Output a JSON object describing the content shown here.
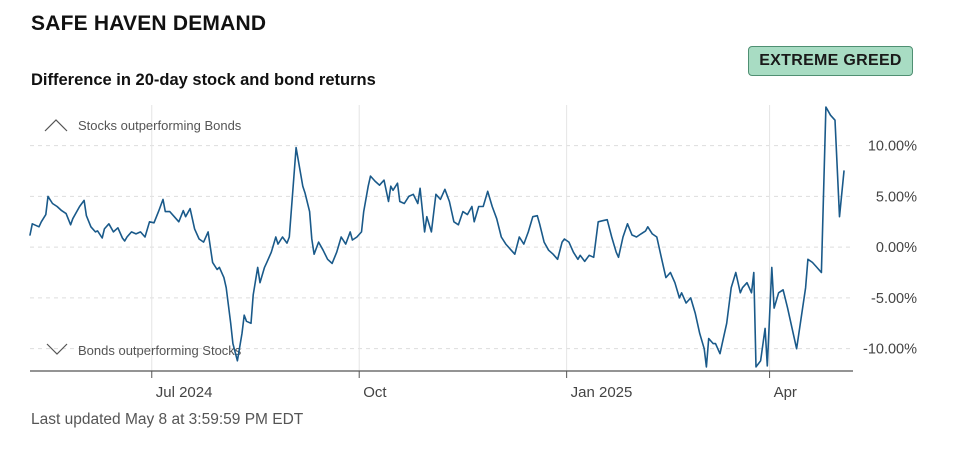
{
  "header": {
    "title": "SAFE HAVEN DEMAND",
    "badge": "EXTREME GREED",
    "subtitle": "Difference in 20-day stock and bond returns"
  },
  "footer": {
    "updated": "Last updated May 8 at 3:59:59 PM EDT"
  },
  "colors": {
    "line": "#1a5a8a",
    "grid": "#dddddd",
    "badge_bg": "#a8dcc3",
    "badge_border": "#4f8f72"
  },
  "icons": {
    "up": "chevron-up-icon",
    "down": "chevron-down-icon"
  },
  "chart_data": {
    "type": "line",
    "title": "Difference in 20-day stock and bond returns",
    "annotations": {
      "top": "Stocks outperforming Bonds",
      "bottom": "Bonds outperforming Stocks"
    },
    "ylim": [
      -12.2,
      14
    ],
    "yticks": [
      10,
      5,
      0,
      -5,
      -10
    ],
    "ytick_labels": [
      "10.00%",
      "5.00%",
      "0.00%",
      "-5.00%",
      "-10.00%"
    ],
    "xlim": [
      "2024-05-08",
      "2025-05-08"
    ],
    "xticks": [
      "2024-07-01",
      "2024-10-01",
      "2025-01-01",
      "2025-04-01"
    ],
    "xtick_labels": [
      "Jul 2024",
      "Oct",
      "Jan 2025",
      "Apr"
    ],
    "grid": true,
    "series": [
      {
        "values": [
          [
            "2024-05-08",
            1.2
          ],
          [
            "2024-05-09",
            2.3
          ],
          [
            "2024-05-12",
            2.0
          ],
          [
            "2024-05-13",
            2.5
          ],
          [
            "2024-05-15",
            3.2
          ],
          [
            "2024-05-16",
            5.0
          ],
          [
            "2024-05-18",
            4.3
          ],
          [
            "2024-05-20",
            4.0
          ],
          [
            "2024-05-22",
            3.6
          ],
          [
            "2024-05-24",
            3.3
          ],
          [
            "2024-05-26",
            2.2
          ],
          [
            "2024-05-27",
            2.8
          ],
          [
            "2024-05-30",
            4.0
          ],
          [
            "2024-06-01",
            4.6
          ],
          [
            "2024-06-02",
            3.1
          ],
          [
            "2024-06-04",
            2.0
          ],
          [
            "2024-06-06",
            1.5
          ],
          [
            "2024-06-07",
            1.6
          ],
          [
            "2024-06-09",
            0.9
          ],
          [
            "2024-06-10",
            1.8
          ],
          [
            "2024-06-12",
            2.3
          ],
          [
            "2024-06-14",
            1.5
          ],
          [
            "2024-06-16",
            1.9
          ],
          [
            "2024-06-18",
            0.9
          ],
          [
            "2024-06-19",
            0.6
          ],
          [
            "2024-06-20",
            1.0
          ],
          [
            "2024-06-22",
            1.5
          ],
          [
            "2024-06-24",
            1.3
          ],
          [
            "2024-06-26",
            1.5
          ],
          [
            "2024-06-28",
            1.0
          ],
          [
            "2024-06-30",
            2.5
          ],
          [
            "2024-07-02",
            2.4
          ],
          [
            "2024-07-04",
            3.5
          ],
          [
            "2024-07-06",
            4.7
          ],
          [
            "2024-07-07",
            3.5
          ],
          [
            "2024-07-09",
            3.5
          ],
          [
            "2024-07-11",
            3.0
          ],
          [
            "2024-07-13",
            2.5
          ],
          [
            "2024-07-15",
            3.6
          ],
          [
            "2024-07-16",
            3.0
          ],
          [
            "2024-07-18",
            3.8
          ],
          [
            "2024-07-20",
            1.8
          ],
          [
            "2024-07-22",
            0.8
          ],
          [
            "2024-07-24",
            0.5
          ],
          [
            "2024-07-26",
            1.5
          ],
          [
            "2024-07-28",
            -1.5
          ],
          [
            "2024-07-30",
            -2.2
          ],
          [
            "2024-07-31",
            -2.0
          ],
          [
            "2024-08-02",
            -3.0
          ],
          [
            "2024-08-03",
            -4.0
          ],
          [
            "2024-08-05",
            -7.5
          ],
          [
            "2024-08-06",
            -9.5
          ],
          [
            "2024-08-08",
            -11.2
          ],
          [
            "2024-08-10",
            -8.5
          ],
          [
            "2024-08-11",
            -6.7
          ],
          [
            "2024-08-12",
            -7.3
          ],
          [
            "2024-08-14",
            -7.5
          ],
          [
            "2024-08-15",
            -4.7
          ],
          [
            "2024-08-17",
            -2.0
          ],
          [
            "2024-08-18",
            -3.5
          ],
          [
            "2024-08-20",
            -2.0
          ],
          [
            "2024-08-21",
            -1.5
          ],
          [
            "2024-08-23",
            -0.5
          ],
          [
            "2024-08-25",
            1.0
          ],
          [
            "2024-08-26",
            0.3
          ],
          [
            "2024-08-28",
            1.0
          ],
          [
            "2024-08-30",
            0.4
          ],
          [
            "2024-08-31",
            1.0
          ],
          [
            "2024-09-03",
            9.8
          ],
          [
            "2024-09-06",
            6.0
          ],
          [
            "2024-09-07",
            5.3
          ],
          [
            "2024-09-09",
            3.5
          ],
          [
            "2024-09-10",
            0.8
          ],
          [
            "2024-09-11",
            -0.7
          ],
          [
            "2024-09-13",
            0.5
          ],
          [
            "2024-09-15",
            -0.3
          ],
          [
            "2024-09-17",
            -1.2
          ],
          [
            "2024-09-19",
            -1.6
          ],
          [
            "2024-09-21",
            -0.5
          ],
          [
            "2024-09-23",
            1.0
          ],
          [
            "2024-09-25",
            0.3
          ],
          [
            "2024-09-27",
            1.5
          ],
          [
            "2024-09-28",
            0.7
          ],
          [
            "2024-09-30",
            1.0
          ],
          [
            "2024-10-02",
            1.5
          ],
          [
            "2024-10-03",
            3.5
          ],
          [
            "2024-10-05",
            6.0
          ],
          [
            "2024-10-06",
            7.0
          ],
          [
            "2024-10-08",
            6.5
          ],
          [
            "2024-10-10",
            6.1
          ],
          [
            "2024-10-12",
            6.6
          ],
          [
            "2024-10-14",
            4.5
          ],
          [
            "2024-10-15",
            6.0
          ],
          [
            "2024-10-16",
            5.6
          ],
          [
            "2024-10-18",
            6.3
          ],
          [
            "2024-10-19",
            4.5
          ],
          [
            "2024-10-21",
            4.3
          ],
          [
            "2024-10-23",
            5.0
          ],
          [
            "2024-10-25",
            5.2
          ],
          [
            "2024-10-27",
            4.3
          ],
          [
            "2024-10-28",
            5.8
          ],
          [
            "2024-10-30",
            1.5
          ],
          [
            "2024-10-31",
            3.0
          ],
          [
            "2024-11-02",
            1.5
          ],
          [
            "2024-11-04",
            5.2
          ],
          [
            "2024-11-06",
            4.7
          ],
          [
            "2024-11-08",
            5.7
          ],
          [
            "2024-11-10",
            4.5
          ],
          [
            "2024-11-12",
            2.5
          ],
          [
            "2024-11-14",
            2.2
          ],
          [
            "2024-11-16",
            3.5
          ],
          [
            "2024-11-18",
            3.2
          ],
          [
            "2024-11-20",
            4.0
          ],
          [
            "2024-11-21",
            2.5
          ],
          [
            "2024-11-23",
            4.0
          ],
          [
            "2024-11-25",
            4.0
          ],
          [
            "2024-11-27",
            5.5
          ],
          [
            "2024-11-29",
            4.0
          ],
          [
            "2024-12-01",
            2.8
          ],
          [
            "2024-12-03",
            1.0
          ],
          [
            "2024-12-05",
            0.3
          ],
          [
            "2024-12-07",
            -0.2
          ],
          [
            "2024-12-09",
            -0.7
          ],
          [
            "2024-12-11",
            1.0
          ],
          [
            "2024-12-13",
            0.3
          ],
          [
            "2024-12-15",
            1.5
          ],
          [
            "2024-12-17",
            3.0
          ],
          [
            "2024-12-19",
            3.1
          ],
          [
            "2024-12-20",
            2.3
          ],
          [
            "2024-12-22",
            0.5
          ],
          [
            "2024-12-24",
            -0.3
          ],
          [
            "2024-12-26",
            -0.7
          ],
          [
            "2024-12-28",
            -1.2
          ],
          [
            "2024-12-30",
            0.5
          ],
          [
            "2024-12-31",
            0.8
          ],
          [
            "2025-01-02",
            0.5
          ],
          [
            "2025-01-04",
            -0.5
          ],
          [
            "2025-01-06",
            -1.2
          ],
          [
            "2025-01-07",
            -0.8
          ],
          [
            "2025-01-09",
            -1.4
          ],
          [
            "2025-01-11",
            -0.8
          ],
          [
            "2025-01-13",
            -1.0
          ],
          [
            "2025-01-15",
            2.5
          ],
          [
            "2025-01-17",
            2.6
          ],
          [
            "2025-01-19",
            2.7
          ],
          [
            "2025-01-21",
            1.0
          ],
          [
            "2025-01-23",
            -0.5
          ],
          [
            "2025-01-24",
            -1.0
          ],
          [
            "2025-01-26",
            1.0
          ],
          [
            "2025-01-28",
            2.3
          ],
          [
            "2025-01-30",
            1.2
          ],
          [
            "2025-02-01",
            1.0
          ],
          [
            "2025-02-03",
            1.3
          ],
          [
            "2025-02-05",
            1.6
          ],
          [
            "2025-02-06",
            2.0
          ],
          [
            "2025-02-08",
            1.3
          ],
          [
            "2025-02-10",
            1.0
          ],
          [
            "2025-02-12",
            -1.0
          ],
          [
            "2025-02-14",
            -3.0
          ],
          [
            "2025-02-16",
            -2.5
          ],
          [
            "2025-02-18",
            -3.5
          ],
          [
            "2025-02-20",
            -5.0
          ],
          [
            "2025-02-21",
            -4.5
          ],
          [
            "2025-02-23",
            -5.5
          ],
          [
            "2025-02-25",
            -5.0
          ],
          [
            "2025-02-27",
            -6.5
          ],
          [
            "2025-03-01",
            -8.5
          ],
          [
            "2025-03-03",
            -10.0
          ],
          [
            "2025-03-04",
            -11.8
          ],
          [
            "2025-03-05",
            -9.0
          ],
          [
            "2025-03-07",
            -9.5
          ],
          [
            "2025-03-08",
            -9.5
          ],
          [
            "2025-03-10",
            -10.5
          ],
          [
            "2025-03-11",
            -9.5
          ],
          [
            "2025-03-13",
            -7.5
          ],
          [
            "2025-03-15",
            -4.0
          ],
          [
            "2025-03-17",
            -2.5
          ],
          [
            "2025-03-19",
            -4.5
          ],
          [
            "2025-03-20",
            -4.0
          ],
          [
            "2025-03-22",
            -3.5
          ],
          [
            "2025-03-24",
            -4.5
          ],
          [
            "2025-03-25",
            -2.5
          ],
          [
            "2025-03-26",
            -11.8
          ],
          [
            "2025-03-28",
            -11.2
          ],
          [
            "2025-03-30",
            -8.0
          ],
          [
            "2025-03-31",
            -11.7
          ],
          [
            "2025-04-02",
            -2.0
          ],
          [
            "2025-04-03",
            -6.0
          ],
          [
            "2025-04-05",
            -4.5
          ],
          [
            "2025-04-07",
            -4.2
          ],
          [
            "2025-04-09",
            -6.0
          ],
          [
            "2025-04-11",
            -8.0
          ],
          [
            "2025-04-13",
            -10.0
          ],
          [
            "2025-04-15",
            -7.0
          ],
          [
            "2025-04-17",
            -4.0
          ],
          [
            "2025-04-18",
            -1.2
          ],
          [
            "2025-04-20",
            -1.5
          ],
          [
            "2025-04-22",
            -2.0
          ],
          [
            "2025-04-24",
            -2.5
          ],
          [
            "2025-04-26",
            13.8
          ],
          [
            "2025-04-28",
            13.0
          ],
          [
            "2025-04-30",
            12.5
          ],
          [
            "2025-05-02",
            3.0
          ],
          [
            "2025-05-04",
            7.5
          ]
        ]
      }
    ]
  }
}
